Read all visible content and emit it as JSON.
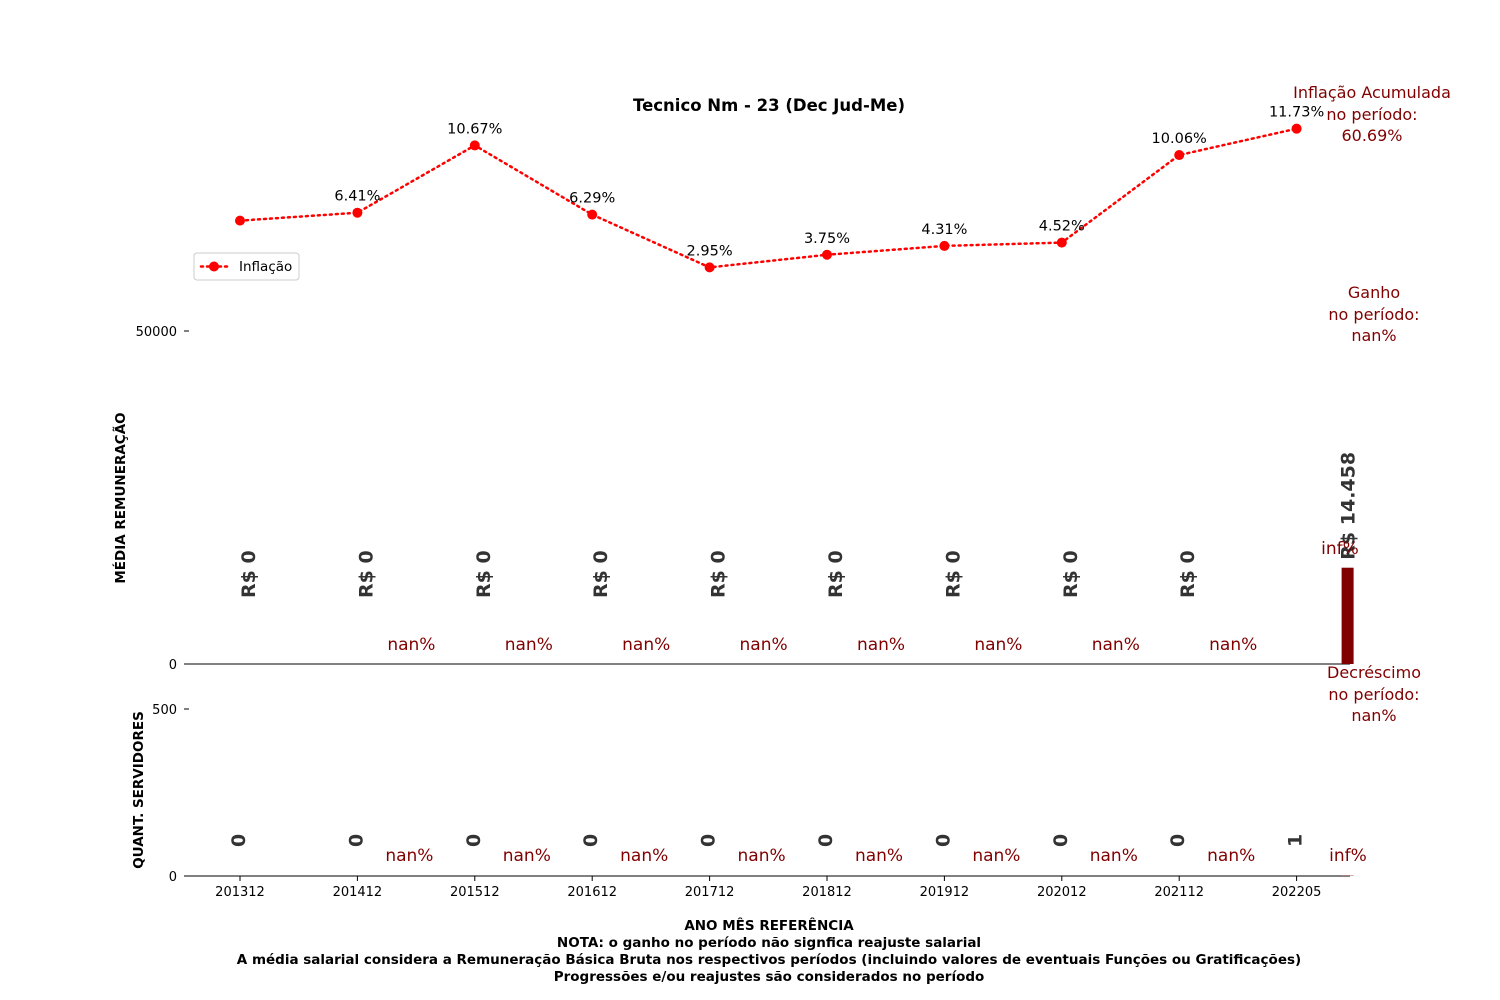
{
  "chart_data": [
    {
      "type": "line",
      "title": "Tecnico Nm - 23 (Dec Jud-Me)",
      "legend": {
        "label": "Inflação",
        "placement": "upper-left"
      },
      "categories": [
        "201312",
        "201412",
        "201512",
        "201612",
        "201712",
        "201812",
        "201912",
        "202012",
        "202112",
        "202205"
      ],
      "series": [
        {
          "name": "Inflação",
          "values": [
            5.91,
            6.41,
            10.67,
            6.29,
            2.95,
            3.75,
            4.31,
            4.52,
            10.06,
            11.73
          ],
          "labels": [
            "",
            "6.41%",
            "10.67%",
            "6.29%",
            "2.95%",
            "3.75%",
            "4.31%",
            "4.52%",
            "10.06%",
            "11.73%"
          ]
        }
      ],
      "color": "#ff0000"
    },
    {
      "type": "bar",
      "ylabel": "MÉDIA REMUNERAÇÃO",
      "ylim": [
        0,
        60000
      ],
      "yticks": [
        "0",
        "50000"
      ],
      "categories": [
        "201312",
        "201412",
        "201512",
        "201612",
        "201712",
        "201812",
        "201912",
        "202012",
        "202112",
        "202205"
      ],
      "values": [
        0,
        0,
        0,
        0,
        0,
        0,
        0,
        0,
        0,
        14458
      ],
      "value_labels": [
        "R$ 0",
        "R$ 0",
        "R$ 0",
        "R$ 0",
        "R$ 0",
        "R$ 0",
        "R$ 0",
        "R$ 0",
        "R$ 0",
        "R$ 14.458"
      ],
      "change_labels": [
        "nan%",
        "nan%",
        "nan%",
        "nan%",
        "nan%",
        "nan%",
        "nan%",
        "nan%",
        "inf%"
      ],
      "bar_color": "#800000"
    },
    {
      "type": "bar",
      "ylabel": "QUANT. SERVIDORES",
      "ylim": [
        0,
        600
      ],
      "yticks": [
        "0",
        "500"
      ],
      "xlabel": "ANO MÊS REFERÊNCIA",
      "categories": [
        "201312",
        "201412",
        "201512",
        "201612",
        "201712",
        "201812",
        "201912",
        "202012",
        "202112",
        "202205"
      ],
      "values": [
        0,
        0,
        0,
        0,
        0,
        0,
        0,
        0,
        0,
        1
      ],
      "value_labels": [
        "0",
        "0",
        "0",
        "0",
        "0",
        "0",
        "0",
        "0",
        "0",
        "1"
      ],
      "change_labels": [
        "nan%",
        "nan%",
        "nan%",
        "nan%",
        "nan%",
        "nan%",
        "nan%",
        "nan%",
        "inf%"
      ]
    }
  ],
  "side_notes": {
    "inflation": [
      "Inflação Acumulada",
      "no período:",
      "60.69%"
    ],
    "gain": [
      "Ganho",
      "no período:",
      "nan%"
    ],
    "decrease": [
      "Decréscimo",
      "no período:",
      "nan%"
    ]
  },
  "footer": {
    "note1": "NOTA: o ganho no período não signfica reajuste salarial",
    "note2": "A média salarial considera a Remuneração Básica Bruta nos respectivos períodos (incluindo valores de eventuais Funções ou Gratificações)",
    "note3": "Progressões e/ou reajustes são considerados no período"
  }
}
